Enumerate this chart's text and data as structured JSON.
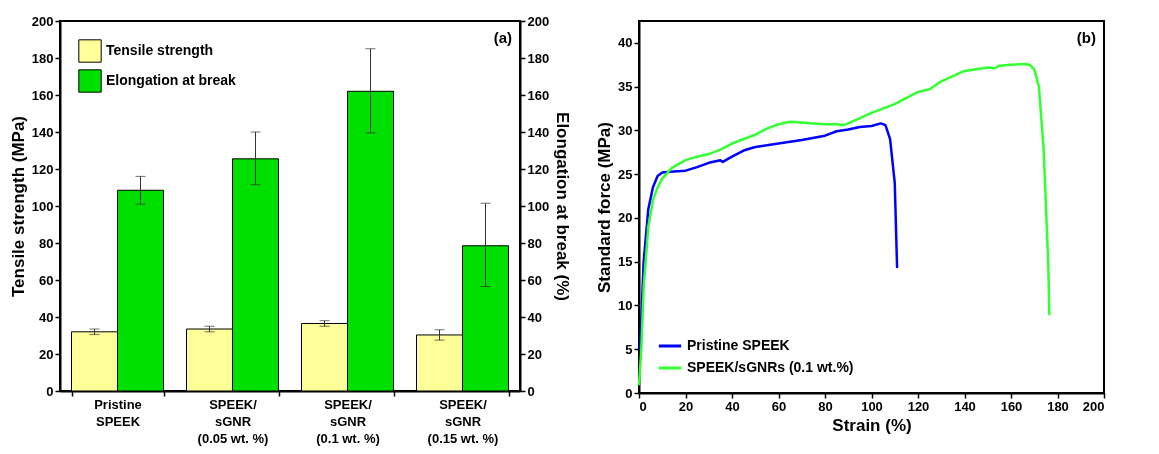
{
  "chart_data": [
    {
      "type": "bar",
      "categories": [
        "Pristine\nSPEEK",
        "SPEEK/\nsGNR\n(0.05 wt. %)",
        "SPEEK/\nsGNR\n(0.1 wt. %)",
        "SPEEK/\nsGNR\n(0.15 wt. %)"
      ],
      "series": [
        {
          "name": "Tensile strength",
          "color": "#ffff99",
          "values": [
            32,
            33.5,
            36.5,
            30.3
          ],
          "errors": [
            1.5,
            1.5,
            1.5,
            2.8
          ]
        },
        {
          "name": "Elongation at break",
          "color": "#00e000",
          "axis": "y2",
          "values": [
            108.5,
            125.5,
            162,
            78.5
          ],
          "errors": [
            [
              101,
              116
            ],
            [
              111.5,
              140
            ],
            [
              139.5,
              185
            ],
            [
              56.5,
              101.5
            ]
          ]
        }
      ],
      "ylabel": "Tensile strength (MPa)",
      "y2label": "Elongation at break (%)",
      "ylim": [
        0,
        200
      ],
      "yticks": [
        0,
        20,
        40,
        60,
        80,
        100,
        120,
        140,
        160,
        180,
        200
      ],
      "y2lim": [
        0,
        200
      ],
      "y2ticks": [
        0,
        20,
        40,
        60,
        80,
        100,
        120,
        140,
        160,
        180,
        200
      ],
      "legend": "top left",
      "grid": false,
      "annotations": [
        "(a)"
      ]
    },
    {
      "type": "line",
      "xlabel": "Strain (%)",
      "ylabel": "Standard force (MPa)",
      "series": [
        {
          "name": "Pristine SPEEK",
          "color": "#0000ff",
          "x": [
            0.5,
            2,
            4,
            6,
            8,
            10,
            15,
            20,
            25,
            30,
            35,
            36,
            40,
            45,
            50,
            60,
            70,
            80,
            85,
            90,
            95,
            100,
            104,
            106,
            108,
            110,
            111
          ],
          "values": [
            5,
            15,
            21,
            23.5,
            24.8,
            25.2,
            25.3,
            25.4,
            25.8,
            26.3,
            26.6,
            26.4,
            27,
            27.7,
            28.1,
            28.5,
            28.9,
            29.4,
            29.9,
            30.1,
            30.4,
            30.5,
            30.8,
            30.6,
            29,
            24,
            14.4
          ]
        },
        {
          "name": "SPEEK/sGNRs (0.1 wt.%)",
          "color": "#33ff33",
          "x": [
            0,
            1,
            2,
            4,
            6,
            8,
            10,
            14,
            20,
            25,
            30,
            35,
            40,
            50,
            55,
            60,
            65,
            70,
            75,
            80,
            85,
            88,
            90,
            95,
            100,
            110,
            120,
            125,
            130,
            140,
            150,
            153,
            155,
            160,
            165,
            168,
            170,
            172,
            174,
            176,
            176.5
          ],
          "values": [
            1,
            5,
            12,
            19,
            22,
            23.5,
            24.5,
            25.7,
            26.6,
            27,
            27.3,
            27.8,
            28.5,
            29.5,
            30.2,
            30.7,
            31,
            30.9,
            30.8,
            30.7,
            30.7,
            30.6,
            30.8,
            31.4,
            32,
            33,
            34.4,
            34.7,
            35.6,
            36.8,
            37.2,
            37.1,
            37.4,
            37.5,
            37.6,
            37.5,
            37,
            35,
            28,
            15,
            9
          ]
        }
      ],
      "xlim": [
        0,
        200
      ],
      "xticks": [
        0,
        20,
        40,
        60,
        80,
        100,
        120,
        140,
        160,
        180,
        200
      ],
      "ylim": [
        0,
        42.5
      ],
      "yticks": [
        0,
        5,
        10,
        15,
        20,
        25,
        30,
        35,
        40
      ],
      "legend": "bottom left",
      "grid": false,
      "annotations": [
        "(b)"
      ]
    }
  ]
}
